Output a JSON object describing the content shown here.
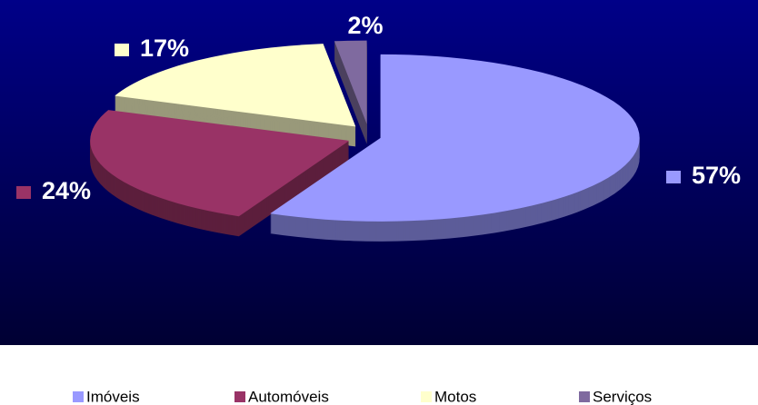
{
  "chart_data": {
    "type": "pie",
    "categories": [
      "Imóveis",
      "Automóveis",
      "Motos",
      "Serviços"
    ],
    "values": [
      57,
      24,
      17,
      2
    ],
    "value_labels": [
      "57%",
      "24%",
      "17%",
      "2%"
    ],
    "colors": [
      "#9999ff",
      "#993366",
      "#ffffcc",
      "#7f6a9f"
    ],
    "legend": "bottom"
  }
}
